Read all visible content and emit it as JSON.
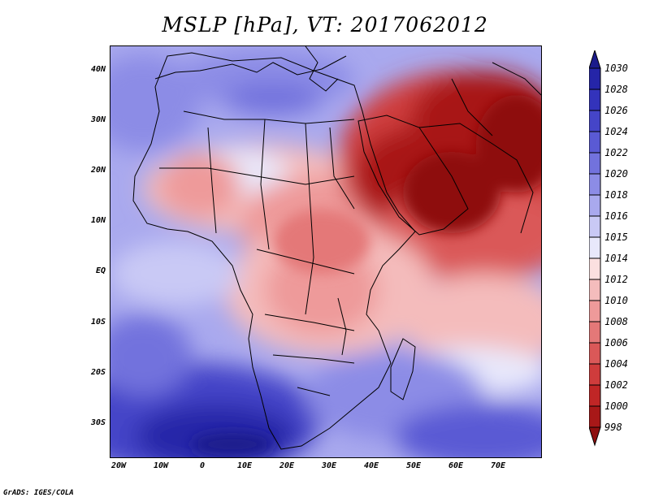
{
  "title": "MSLP [hPa], VT: 2017062012",
  "lat_labels": [
    "40N",
    "30N",
    "20N",
    "10N",
    "EQ",
    "10S",
    "20S",
    "30S"
  ],
  "lon_labels": [
    "20W",
    "10W",
    "0",
    "10E",
    "20E",
    "30E",
    "40E",
    "50E",
    "60E",
    "70E"
  ],
  "legend": {
    "levels": [
      "1030",
      "1028",
      "1026",
      "1024",
      "1022",
      "1020",
      "1018",
      "1016",
      "1015",
      "1014",
      "1012",
      "1010",
      "1008",
      "1006",
      "1004",
      "1002",
      "1000",
      "998"
    ],
    "colors": [
      "#1b1b8c",
      "#2525a8",
      "#3333bb",
      "#4545c8",
      "#5a5ad4",
      "#7272dd",
      "#8c8ce6",
      "#a9a9ee",
      "#c9c9f5",
      "#e8e8fb",
      "#fbe0e0",
      "#f4bcbc",
      "#ee9a9a",
      "#e47878",
      "#da5858",
      "#cf3c3c",
      "#c02626",
      "#a81818",
      "#8e0f0f"
    ]
  },
  "credit": "GrADS: IGES/COLA"
}
